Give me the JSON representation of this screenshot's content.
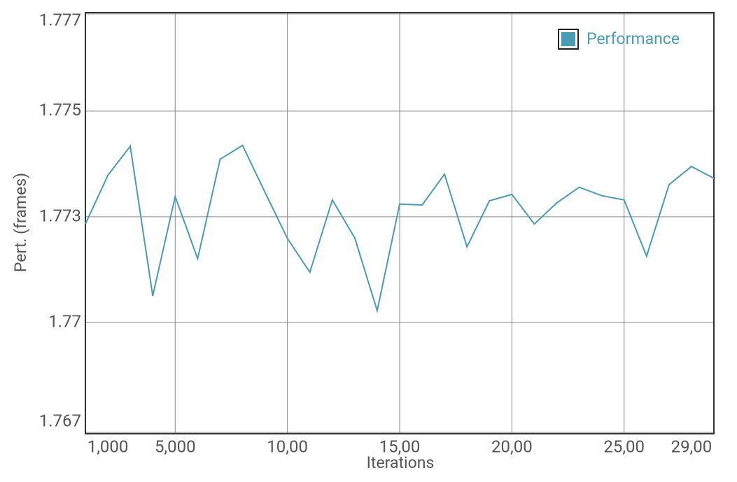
{
  "chart_data": {
    "type": "line",
    "x_label": "Iterations",
    "y_label": "Pert. (frames)",
    "categories": [
      null,
      "1,000",
      null,
      null,
      "5,000",
      null,
      null,
      null,
      null,
      "10,00",
      null,
      null,
      null,
      null,
      "15,00",
      null,
      null,
      null,
      null,
      "20,00",
      null,
      null,
      null,
      null,
      "25,00",
      null,
      null,
      "29,00",
      null
    ],
    "series": [
      {
        "name": "Performance",
        "color": "#4a9bb5",
        "values": [
          1.77233,
          1.77348,
          1.77417,
          1.77063,
          1.77298,
          1.77151,
          1.77386,
          1.77419,
          1.77308,
          1.77199,
          1.77119,
          1.7729,
          1.772,
          1.77028,
          1.7728,
          1.77278,
          1.77351,
          1.77179,
          1.77288,
          1.77303,
          1.77233,
          1.77283,
          1.7732,
          1.773,
          1.7729,
          1.77157,
          1.77326,
          1.77369,
          1.77341
        ]
      }
    ],
    "ylim": [
      1.76737,
      1.77733
    ],
    "yticks": [
      {
        "value": 1.7674,
        "label": "1.767"
      },
      1.77,
      {
        "value": 1.7725,
        "label": "1.773"
      },
      1.775,
      {
        "value": 1.7773,
        "label": "1.777"
      }
    ],
    "grid": true,
    "legend": "top-right"
  }
}
